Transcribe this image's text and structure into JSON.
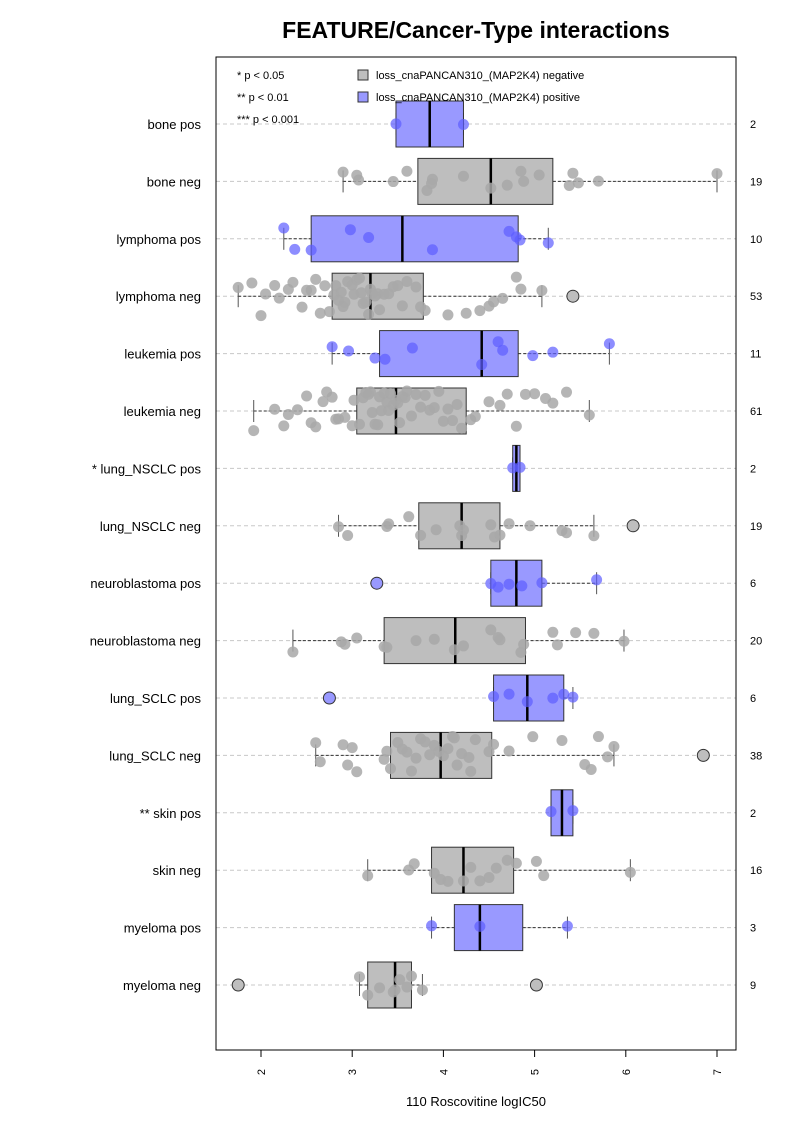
{
  "chart_data": {
    "type": "boxplot",
    "title": "FEATURE/Cancer-Type interactions",
    "xlabel": "110 Roscovitine logIC50",
    "xlim": [
      1.6,
      7.2
    ],
    "xticks": [
      "2",
      "3",
      "4",
      "5",
      "6",
      "7"
    ],
    "significance_legend": [
      "* p < 0.05",
      "** p < 0.01",
      "*** p < 0.001"
    ],
    "legend": [
      {
        "label": "loss_cnaPANCAN310_(MAP2K4) negative",
        "color": "#bebebe"
      },
      {
        "label": "loss_cnaPANCAN310_(MAP2K4) positive",
        "color": "#9999ff"
      }
    ],
    "legend_placement": "top",
    "colors": {
      "negative_box": "#bebebe",
      "positive_box": "#9999ff",
      "negative_point": "#a8a8a8",
      "positive_point": "#5c5cff",
      "grid": "#c8c8c8"
    },
    "groups": [
      {
        "label": "bone pos",
        "n": "2",
        "status": "positive",
        "q1": 3.48,
        "median": 3.85,
        "q3": 4.22,
        "whisker_low": 3.48,
        "whisker_high": 4.22,
        "points": [
          3.48,
          4.22
        ],
        "outliers": []
      },
      {
        "label": "bone neg",
        "n": "19",
        "status": "negative",
        "q1": 3.72,
        "median": 4.52,
        "q3": 5.2,
        "whisker_low": 2.9,
        "whisker_high": 7.0,
        "points": [
          2.9,
          3.05,
          3.07,
          3.45,
          3.6,
          3.82,
          3.87,
          3.88,
          4.22,
          4.52,
          4.7,
          4.85,
          4.88,
          5.05,
          5.38,
          5.42,
          5.48,
          5.7,
          7.0
        ],
        "outliers": []
      },
      {
        "label": "lymphoma pos",
        "n": "10",
        "status": "positive",
        "q1": 2.55,
        "median": 3.55,
        "q3": 4.82,
        "whisker_low": 2.25,
        "whisker_high": 5.15,
        "points": [
          2.25,
          2.37,
          2.55,
          2.98,
          3.18,
          3.88,
          4.72,
          4.8,
          4.84,
          5.15
        ],
        "outliers": []
      },
      {
        "label": "lymphoma neg",
        "n": "53",
        "status": "negative",
        "q1": 2.78,
        "median": 3.2,
        "q3": 3.78,
        "whisker_low": 1.75,
        "whisker_high": 5.08,
        "points": [
          1.75,
          1.9,
          2.0,
          2.05,
          2.15,
          2.2,
          2.3,
          2.35,
          2.45,
          2.5,
          2.55,
          2.6,
          2.65,
          2.7,
          2.75,
          2.8,
          2.82,
          2.85,
          2.88,
          2.9,
          2.92,
          2.95,
          3.0,
          3.02,
          3.05,
          3.08,
          3.1,
          3.12,
          3.15,
          3.18,
          3.2,
          3.22,
          3.25,
          3.28,
          3.3,
          3.35,
          3.4,
          3.45,
          3.5,
          3.55,
          3.6,
          3.7,
          3.75,
          3.8,
          4.05,
          4.25,
          4.4,
          4.5,
          4.55,
          4.65,
          4.8,
          4.85,
          5.08
        ],
        "outliers": [
          5.42
        ]
      },
      {
        "label": "leukemia pos",
        "n": "11",
        "status": "positive",
        "q1": 3.3,
        "median": 4.42,
        "q3": 4.82,
        "whisker_low": 2.78,
        "whisker_high": 5.82,
        "points": [
          2.78,
          2.96,
          3.25,
          3.36,
          3.66,
          4.42,
          4.6,
          4.65,
          4.98,
          5.2,
          5.82
        ],
        "outliers": []
      },
      {
        "label": "leukemia neg",
        "n": "61",
        "status": "negative",
        "q1": 3.05,
        "median": 3.48,
        "q3": 4.25,
        "whisker_low": 1.92,
        "whisker_high": 5.6,
        "points": [
          1.92,
          2.15,
          2.25,
          2.3,
          2.4,
          2.5,
          2.55,
          2.6,
          2.68,
          2.72,
          2.78,
          2.82,
          2.85,
          2.92,
          3.0,
          3.02,
          3.08,
          3.12,
          3.15,
          3.18,
          3.2,
          3.22,
          3.25,
          3.28,
          3.3,
          3.32,
          3.35,
          3.38,
          3.4,
          3.42,
          3.45,
          3.48,
          3.5,
          3.52,
          3.55,
          3.58,
          3.6,
          3.65,
          3.7,
          3.75,
          3.8,
          3.85,
          3.9,
          3.95,
          4.0,
          4.05,
          4.1,
          4.15,
          4.2,
          4.3,
          4.35,
          4.5,
          4.62,
          4.7,
          4.8,
          4.9,
          5.0,
          5.12,
          5.2,
          5.35,
          5.6
        ],
        "outliers": []
      },
      {
        "label": "* lung_NSCLC pos",
        "n": "2",
        "status": "positive",
        "q1": 4.76,
        "median": 4.8,
        "q3": 4.84,
        "whisker_low": 4.76,
        "whisker_high": 4.84,
        "points": [
          4.76,
          4.84
        ],
        "outliers": []
      },
      {
        "label": "lung_NSCLC neg",
        "n": "19",
        "status": "negative",
        "q1": 3.73,
        "median": 4.2,
        "q3": 4.62,
        "whisker_low": 2.85,
        "whisker_high": 5.65,
        "points": [
          2.85,
          2.95,
          3.38,
          3.4,
          3.62,
          3.75,
          3.92,
          4.18,
          4.2,
          4.22,
          4.52,
          4.56,
          4.62,
          4.72,
          4.95,
          5.3,
          5.35,
          5.65
        ],
        "outliers": [
          6.08
        ]
      },
      {
        "label": "neuroblastoma pos",
        "n": "6",
        "status": "positive",
        "q1": 4.52,
        "median": 4.8,
        "q3": 5.08,
        "whisker_low": 4.52,
        "whisker_high": 5.68,
        "points": [
          4.52,
          4.6,
          4.72,
          4.86,
          5.08,
          5.68
        ],
        "outliers": [
          3.27
        ]
      },
      {
        "label": "neuroblastoma neg",
        "n": "20",
        "status": "negative",
        "q1": 3.35,
        "median": 4.13,
        "q3": 4.9,
        "whisker_low": 2.35,
        "whisker_high": 5.98,
        "points": [
          2.35,
          2.88,
          2.92,
          3.05,
          3.35,
          3.38,
          3.7,
          3.9,
          4.12,
          4.22,
          4.52,
          4.6,
          4.62,
          4.85,
          4.88,
          5.2,
          5.25,
          5.45,
          5.65,
          5.98
        ],
        "outliers": []
      },
      {
        "label": "lung_SCLC pos",
        "n": "6",
        "status": "positive",
        "q1": 4.55,
        "median": 4.92,
        "q3": 5.32,
        "whisker_low": 4.55,
        "whisker_high": 5.42,
        "points": [
          4.55,
          4.72,
          4.92,
          5.2,
          5.32,
          5.42
        ],
        "outliers": [
          2.75
        ]
      },
      {
        "label": "lung_SCLC neg",
        "n": "38",
        "status": "negative",
        "q1": 3.42,
        "median": 3.97,
        "q3": 4.53,
        "whisker_low": 2.6,
        "whisker_high": 5.87,
        "points": [
          2.6,
          2.65,
          2.9,
          2.95,
          3.0,
          3.05,
          3.35,
          3.38,
          3.42,
          3.5,
          3.55,
          3.6,
          3.65,
          3.7,
          3.75,
          3.8,
          3.85,
          3.9,
          3.95,
          4.0,
          4.05,
          4.1,
          4.12,
          4.15,
          4.2,
          4.28,
          4.3,
          4.35,
          4.5,
          4.55,
          4.72,
          4.98,
          5.3,
          5.55,
          5.62,
          5.7,
          5.8,
          5.87
        ],
        "outliers": [
          6.85
        ]
      },
      {
        "label": "** skin pos",
        "n": "2",
        "status": "positive",
        "q1": 5.18,
        "median": 5.3,
        "q3": 5.42,
        "whisker_low": 5.18,
        "whisker_high": 5.42,
        "points": [
          5.18,
          5.42
        ],
        "outliers": []
      },
      {
        "label": "skin neg",
        "n": "16",
        "status": "negative",
        "q1": 3.87,
        "median": 4.22,
        "q3": 4.77,
        "whisker_low": 3.17,
        "whisker_high": 6.05,
        "points": [
          3.17,
          3.62,
          3.68,
          3.9,
          3.97,
          4.22,
          4.3,
          4.4,
          4.5,
          4.58,
          4.7,
          4.8,
          5.02,
          5.1,
          6.05,
          4.05
        ],
        "outliers": []
      },
      {
        "label": "myeloma pos",
        "n": "3",
        "status": "positive",
        "q1": 4.12,
        "median": 4.4,
        "q3": 4.87,
        "whisker_low": 3.87,
        "whisker_high": 5.36,
        "points": [
          3.87,
          4.4,
          5.36
        ],
        "outliers": []
      },
      {
        "label": "myeloma neg",
        "n": "9",
        "status": "negative",
        "q1": 3.17,
        "median": 3.47,
        "q3": 3.65,
        "whisker_low": 3.08,
        "whisker_high": 3.77,
        "points": [
          3.08,
          3.17,
          3.3,
          3.45,
          3.47,
          3.52,
          3.6,
          3.65,
          3.77
        ],
        "outliers": [
          1.75,
          5.02
        ]
      }
    ]
  }
}
